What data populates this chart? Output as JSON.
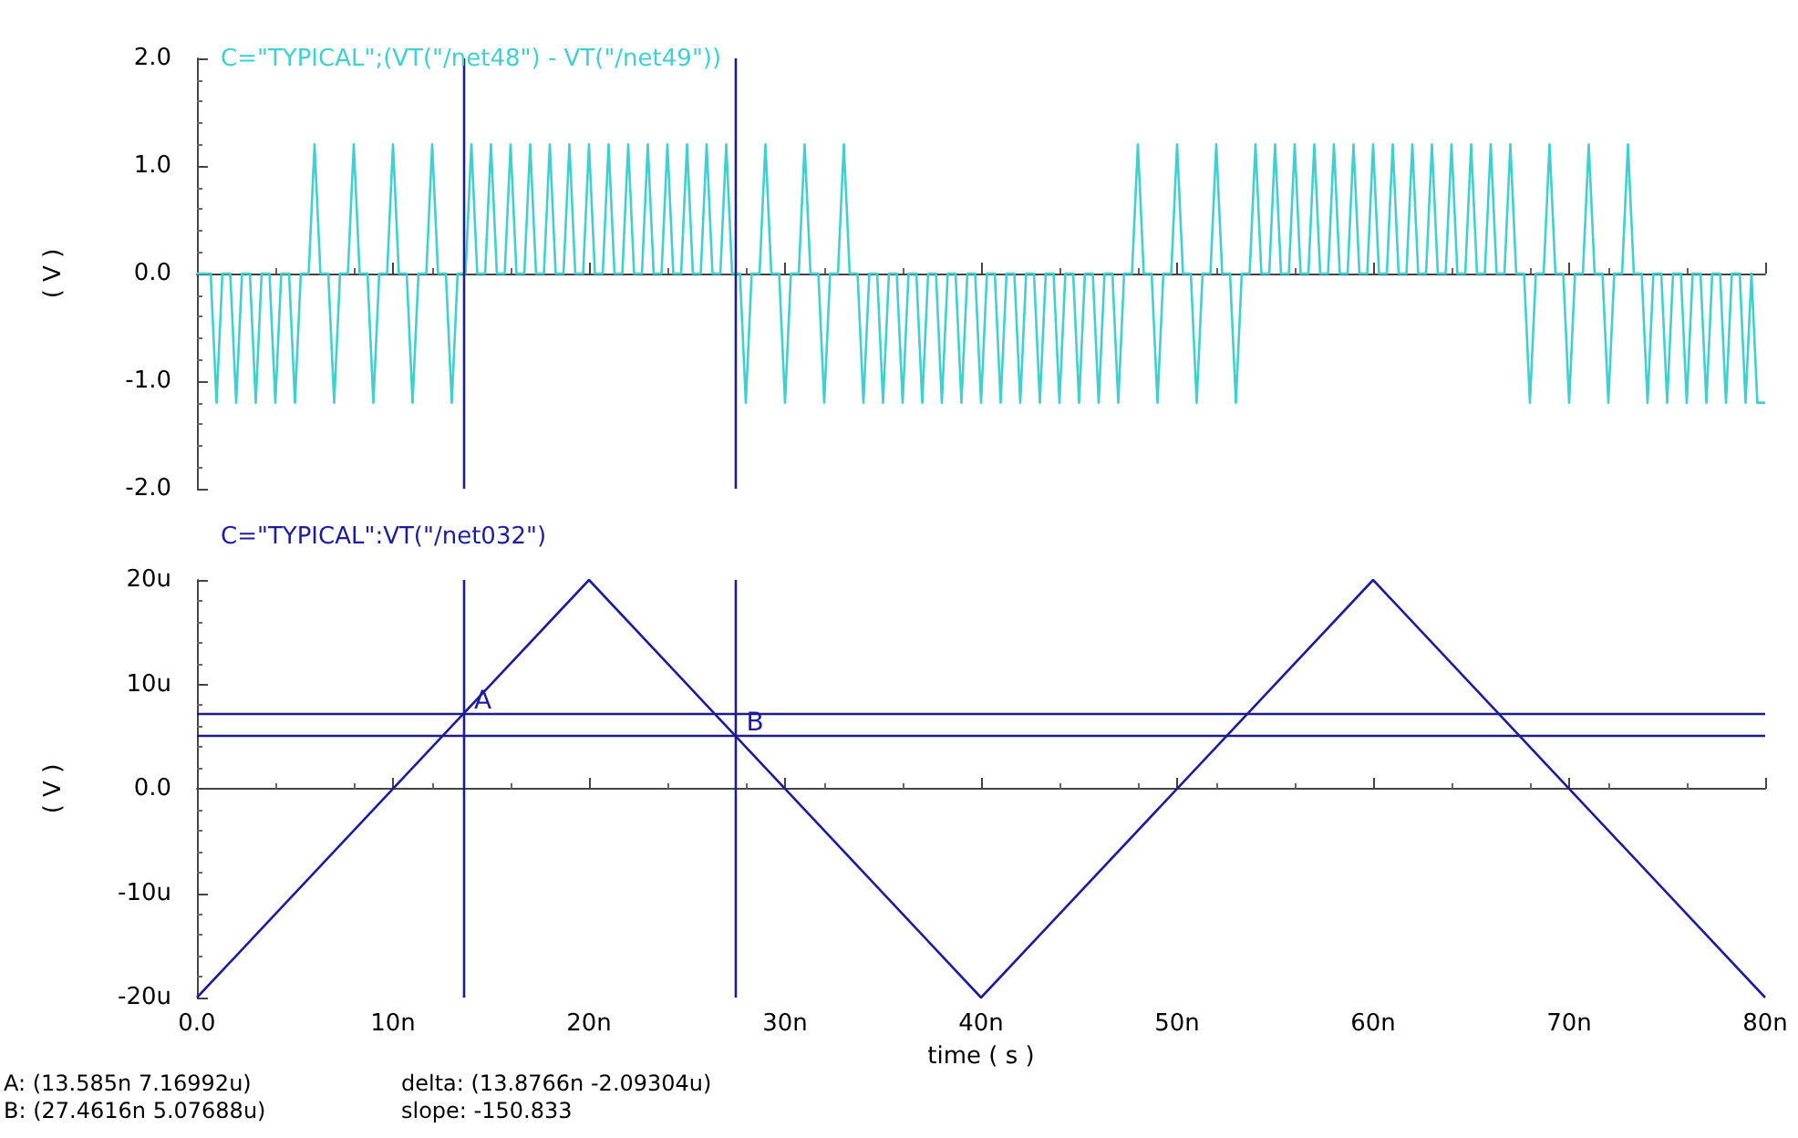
{
  "chart_data": [
    {
      "type": "line",
      "title": "C=\"TYPICAL\";(VT(\"/net48\") - VT(\"/net49\"))",
      "ylabel": "( V )",
      "marker": "none",
      "tick_labels": "y",
      "xlim": [
        0,
        80
      ],
      "ylim": [
        -2,
        2
      ],
      "xticks": [
        {
          "value": 0,
          "label": null
        },
        {
          "value": 10,
          "label": null
        },
        {
          "value": 20,
          "label": null
        },
        {
          "value": 30,
          "label": null
        },
        {
          "value": 40,
          "label": null
        },
        {
          "value": 50,
          "label": null
        },
        {
          "value": 60,
          "label": null
        },
        {
          "value": 70,
          "label": null
        },
        {
          "value": 80,
          "label": null
        }
      ],
      "yticks": [
        {
          "value": -2,
          "label": "-2.0"
        },
        {
          "value": -1,
          "label": "-1.0"
        },
        {
          "value": 0,
          "label": "0.0"
        },
        {
          "value": 1,
          "label": "1.0"
        },
        {
          "value": 2,
          "label": "2.0"
        }
      ],
      "ref_lines": [
        {
          "axis": "x",
          "value": 13.585,
          "color": "#1c1c8c"
        },
        {
          "axis": "x",
          "value": 27.4616,
          "color": "#1c1c8c"
        }
      ],
      "series": [
        {
          "color": "#3fd0d0",
          "x": [
            0,
            0.7,
            1,
            1.3,
            1.7,
            2,
            2.3,
            2.7,
            3,
            3.3,
            3.7,
            4,
            4.3,
            4.7,
            5,
            5.3,
            5.7,
            6,
            6.3,
            6.7,
            7,
            7.3,
            7.7,
            8,
            8.3,
            8.7,
            9,
            9.3,
            9.7,
            10,
            10.3,
            10.7,
            11,
            11.3,
            11.7,
            12,
            12.3,
            12.7,
            13,
            13.3,
            13.7,
            14,
            14.3,
            14.7,
            15,
            15.3,
            15.7,
            16,
            16.3,
            16.7,
            17,
            17.3,
            17.7,
            18,
            18.3,
            18.7,
            19,
            19.3,
            19.7,
            20,
            20.3,
            20.7,
            21,
            21.3,
            21.7,
            22,
            22.3,
            22.7,
            23,
            23.3,
            23.7,
            24,
            24.3,
            24.7,
            25,
            25.3,
            25.7,
            26,
            26.3,
            26.7,
            27,
            27.3,
            27.7,
            28,
            28.3,
            28.7,
            29,
            29.3,
            29.7,
            30,
            30.3,
            30.7,
            31,
            31.3,
            31.7,
            32,
            32.3,
            32.7,
            33,
            33.3,
            33.7,
            34,
            34.3,
            34.7,
            35,
            35.3,
            35.7,
            36,
            36.3,
            36.7,
            37,
            37.3,
            37.7,
            38,
            38.3,
            38.7,
            39,
            39.3,
            39.7,
            40,
            40.3,
            40.7,
            41,
            41.3,
            41.7,
            42,
            42.3,
            42.7,
            43,
            43.3,
            43.7,
            44,
            44.3,
            44.7,
            45,
            45.3,
            45.7,
            46,
            46.3,
            46.7,
            47,
            47.3,
            47.7,
            48,
            48.3,
            48.7,
            49,
            49.3,
            49.7,
            50,
            50.3,
            50.7,
            51,
            51.3,
            51.7,
            52,
            52.3,
            52.7,
            53,
            53.3,
            53.7,
            54,
            54.3,
            54.7,
            55,
            55.3,
            55.7,
            56,
            56.3,
            56.7,
            57,
            57.3,
            57.7,
            58,
            58.3,
            58.7,
            59,
            59.3,
            59.7,
            60,
            60.3,
            60.7,
            61,
            61.3,
            61.7,
            62,
            62.3,
            62.7,
            63,
            63.3,
            63.7,
            64,
            64.3,
            64.7,
            65,
            65.3,
            65.7,
            66,
            66.3,
            66.7,
            67,
            67.3,
            67.7,
            68,
            68.3,
            68.7,
            69,
            69.3,
            69.7,
            70,
            70.3,
            70.7,
            71,
            71.3,
            71.7,
            72,
            72.3,
            72.7,
            73,
            73.3,
            73.7,
            74,
            74.3,
            74.7,
            75,
            75.3,
            75.7,
            76,
            76.3,
            76.7,
            77,
            77.3,
            77.7,
            78,
            78.3,
            78.7,
            79,
            79.3,
            79.6,
            80
          ],
          "values": [
            0,
            0,
            -1.2,
            0,
            0,
            -1.2,
            0,
            0,
            -1.2,
            0,
            0,
            -1.2,
            0,
            0,
            -1.2,
            0,
            0,
            1.2,
            0,
            0,
            -1.2,
            0,
            0,
            1.2,
            0,
            0,
            -1.2,
            0,
            0,
            1.2,
            0,
            0,
            -1.2,
            0,
            0,
            1.2,
            0,
            0,
            -1.2,
            0,
            0,
            1.2,
            0,
            0,
            1.2,
            0,
            0,
            1.2,
            0,
            0,
            1.2,
            0,
            0,
            1.2,
            0,
            0,
            1.2,
            0,
            0,
            1.2,
            0,
            0,
            1.2,
            0,
            0,
            1.2,
            0,
            0,
            1.2,
            0,
            0,
            1.2,
            0,
            0,
            1.2,
            0,
            0,
            1.2,
            0,
            0,
            1.2,
            0,
            0,
            -1.2,
            0,
            0,
            1.2,
            0,
            0,
            -1.2,
            0,
            0,
            1.2,
            0,
            0,
            -1.2,
            0,
            0,
            1.2,
            0,
            0,
            -1.2,
            0,
            0,
            -1.2,
            0,
            0,
            -1.2,
            0,
            0,
            -1.2,
            0,
            0,
            -1.2,
            0,
            0,
            -1.2,
            0,
            0,
            -1.2,
            0,
            0,
            -1.2,
            0,
            0,
            -1.2,
            0,
            0,
            -1.2,
            0,
            0,
            -1.2,
            0,
            0,
            -1.2,
            0,
            0,
            -1.2,
            0,
            0,
            -1.2,
            0,
            0,
            1.2,
            0,
            0,
            -1.2,
            0,
            0,
            1.2,
            0,
            0,
            -1.2,
            0,
            0,
            1.2,
            0,
            0,
            -1.2,
            0,
            0,
            1.2,
            0,
            0,
            1.2,
            0,
            0,
            1.2,
            0,
            0,
            1.2,
            0,
            0,
            1.2,
            0,
            0,
            1.2,
            0,
            0,
            1.2,
            0,
            0,
            1.2,
            0,
            0,
            1.2,
            0,
            0,
            1.2,
            0,
            0,
            1.2,
            0,
            0,
            1.2,
            0,
            0,
            1.2,
            0,
            0,
            1.2,
            0,
            0,
            -1.2,
            0,
            0,
            1.2,
            0,
            0,
            -1.2,
            0,
            0,
            1.2,
            0,
            0,
            -1.2,
            0,
            0,
            1.2,
            0,
            0,
            -1.2,
            0,
            0,
            -1.2,
            0,
            0,
            -1.2,
            0,
            0,
            -1.2,
            0,
            0,
            -1.2,
            0,
            0,
            -1.2,
            0,
            -1.2,
            -1.2
          ]
        }
      ]
    },
    {
      "type": "line",
      "title": "C=\"TYPICAL\":VT(\"/net032\")",
      "ylabel": "( V )",
      "xlabel": "time ( s )",
      "marker": "none",
      "xlim": [
        0,
        80
      ],
      "ylim": [
        -20,
        20
      ],
      "xticks": [
        {
          "value": 0,
          "label": "0.0"
        },
        {
          "value": 10,
          "label": "10n"
        },
        {
          "value": 20,
          "label": "20n"
        },
        {
          "value": 30,
          "label": "30n"
        },
        {
          "value": 40,
          "label": "40n"
        },
        {
          "value": 50,
          "label": "50n"
        },
        {
          "value": 60,
          "label": "60n"
        },
        {
          "value": 70,
          "label": "70n"
        },
        {
          "value": 80,
          "label": "80n"
        }
      ],
      "yticks": [
        {
          "value": -20,
          "label": "-20u"
        },
        {
          "value": -10,
          "label": "-10u"
        },
        {
          "value": 0,
          "label": "0.0"
        },
        {
          "value": 10,
          "label": "10u"
        },
        {
          "value": 20,
          "label": "20u"
        }
      ],
      "ref_lines": [
        {
          "axis": "x",
          "value": 13.585,
          "color": "#1c1c8c"
        },
        {
          "axis": "x",
          "value": 27.4616,
          "color": "#1c1c8c"
        },
        {
          "axis": "y",
          "value": 7.16992,
          "color": "#1c1c8c"
        },
        {
          "axis": "y",
          "value": 5.07688,
          "color": "#1c1c8c"
        }
      ],
      "annotations": [
        "A: (13.585n 7.16992u)",
        "B: (27.4616n 5.07688u)",
        "delta: (13.8766n -2.09304u)",
        "slope: -150.833",
        {
          "text": "A",
          "x": 13.585,
          "y": 7.16992
        },
        {
          "text": "B",
          "x": 27.4616,
          "y": 5.07688
        }
      ],
      "series": [
        {
          "color": "#1c1c9c",
          "x": [
            0,
            20,
            40,
            60,
            80
          ],
          "values": [
            -20,
            20,
            -20,
            20,
            -20
          ]
        }
      ]
    }
  ]
}
